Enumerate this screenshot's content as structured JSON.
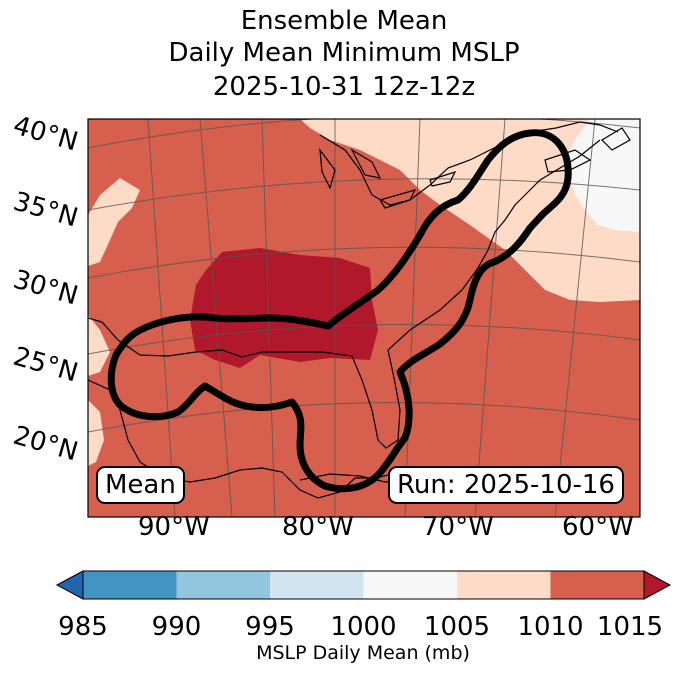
{
  "title": {
    "line1": "Ensemble Mean",
    "line2": "Daily Mean Minimum MSLP",
    "line3": "2025-10-31 12z-12z"
  },
  "lat_labels": [
    "40°N",
    "35°N",
    "30°N",
    "25°N",
    "20°N"
  ],
  "lon_labels": [
    "90°W",
    "80°W",
    "70°W",
    "60°W"
  ],
  "annotations": {
    "mean": "Mean",
    "run": "Run: 2025-10-16"
  },
  "colorbar": {
    "ticks": [
      "985",
      "990",
      "995",
      "1000",
      "1005",
      "1010",
      "1015"
    ],
    "label": "MSLP Daily Mean (mb)",
    "bins": [
      {
        "range": "985-990",
        "color": "#4393c3"
      },
      {
        "range": "990-995",
        "color": "#92c5de"
      },
      {
        "range": "995-1000",
        "color": "#d1e5f0"
      },
      {
        "range": "1000-1005",
        "color": "#f7f7f7"
      },
      {
        "range": "1005-1010",
        "color": "#fddbc7"
      },
      {
        "range": "1010-1015",
        "color": "#d6604d"
      }
    ],
    "under_color": "#2166ac",
    "over_color": "#b2182b"
  }
}
